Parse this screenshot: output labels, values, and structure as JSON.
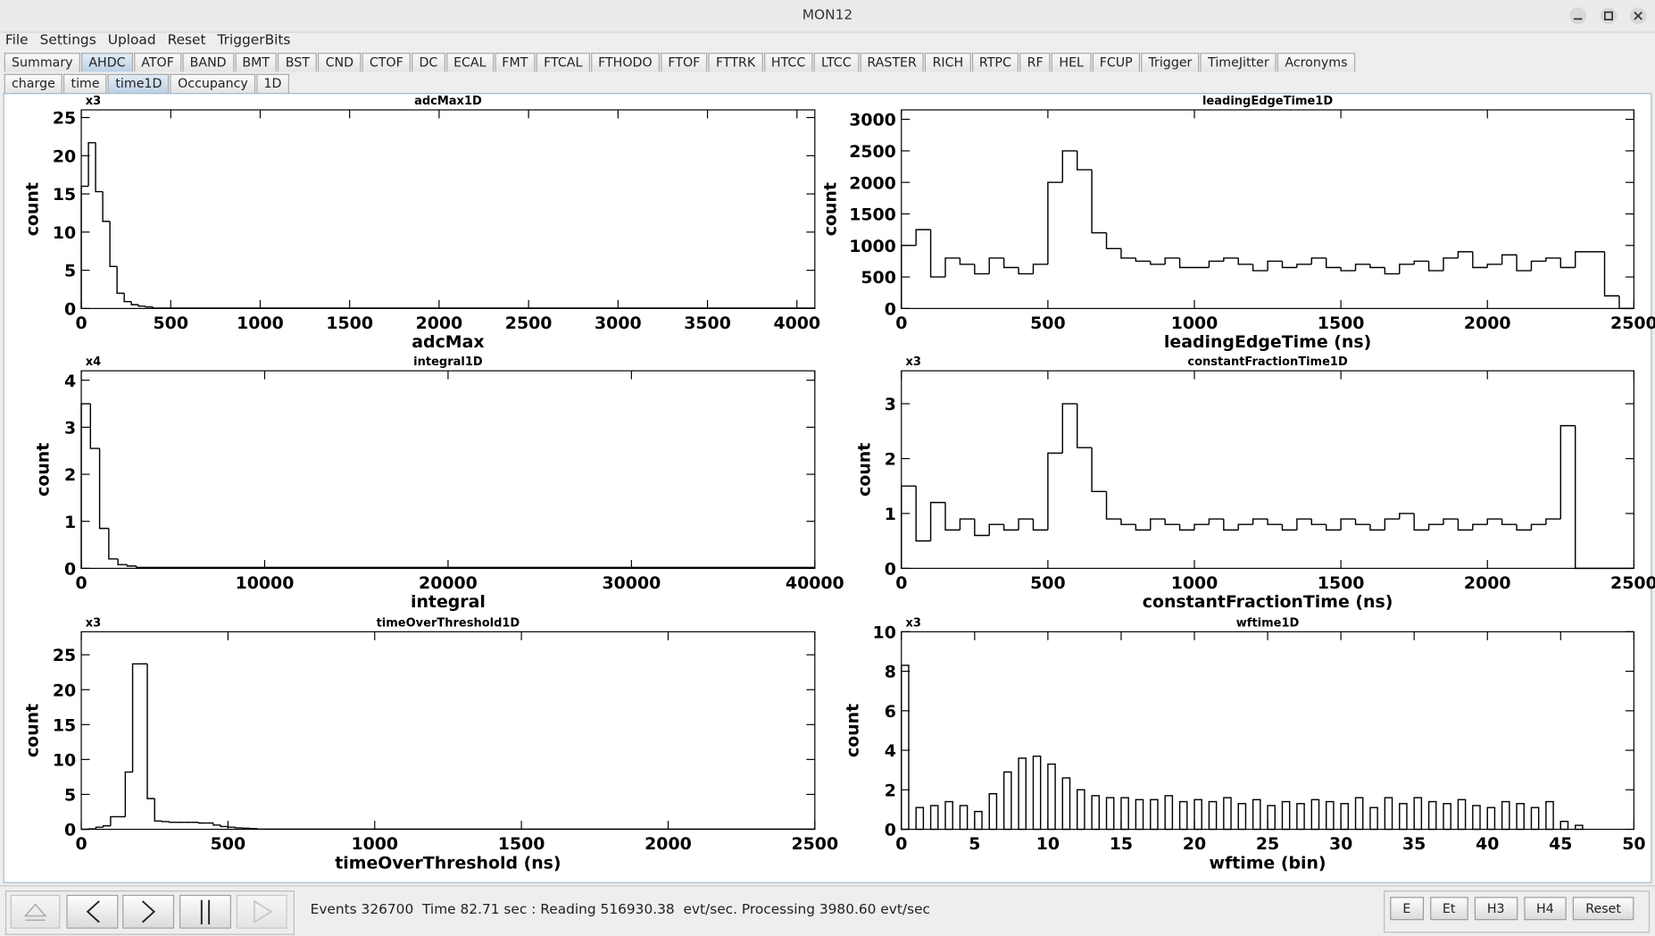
{
  "window": {
    "title": "MON12"
  },
  "menu": [
    "File",
    "Settings",
    "Upload",
    "Reset",
    "TriggerBits"
  ],
  "tabs": {
    "items": [
      "Summary",
      "AHDC",
      "ATOF",
      "BAND",
      "BMT",
      "BST",
      "CND",
      "CTOF",
      "DC",
      "ECAL",
      "FMT",
      "FTCAL",
      "FTHODO",
      "FTOF",
      "FTTRK",
      "HTCC",
      "LTCC",
      "RASTER",
      "RICH",
      "RTPC",
      "RF",
      "HEL",
      "FCUP",
      "Trigger",
      "TimeJitter",
      "Acronyms"
    ],
    "selected": 1
  },
  "subtabs": {
    "items": [
      "charge",
      "time",
      "time1D",
      "Occupancy",
      "1D"
    ],
    "selected": 2
  },
  "chart_data": [
    {
      "type": "histogram",
      "title": "adcMax1D",
      "multiplier": "x3",
      "x_label": "adcMax",
      "y_label": "count",
      "color": "#000000",
      "bins": [
        0,
        40,
        80,
        120,
        160,
        200,
        240,
        280,
        320,
        360,
        400,
        4100
      ],
      "values": [
        16,
        21.7,
        15.3,
        11.4,
        5.5,
        2,
        0.9,
        0.5,
        0.3,
        0.2,
        0.05
      ],
      "xlim": [
        0,
        4100
      ],
      "ylim": [
        0,
        26
      ],
      "xticks": [
        0,
        500,
        1000,
        1500,
        2000,
        2500,
        3000,
        3500,
        4000
      ],
      "yticks": [
        0,
        5,
        10,
        15,
        20,
        25
      ]
    },
    {
      "type": "histogram",
      "title": "leadingEdgeTime1D",
      "x_label": "leadingEdgeTime (ns)",
      "y_label": "count",
      "color": "#000000",
      "bins": [
        0,
        50,
        100,
        150,
        200,
        250,
        300,
        350,
        400,
        450,
        500,
        550,
        600,
        650,
        700,
        750,
        800,
        850,
        900,
        950,
        1000,
        1050,
        1100,
        1150,
        1200,
        1250,
        1300,
        1350,
        1400,
        1450,
        1500,
        1550,
        1600,
        1650,
        1700,
        1750,
        1800,
        1850,
        1900,
        1950,
        2000,
        2050,
        2100,
        2150,
        2200,
        2250,
        2300,
        2350,
        2400,
        2450,
        2500
      ],
      "values": [
        1000,
        1250,
        500,
        800,
        700,
        550,
        800,
        650,
        550,
        700,
        2000,
        2500,
        2200,
        1200,
        950,
        800,
        750,
        700,
        800,
        650,
        650,
        750,
        800,
        700,
        600,
        750,
        650,
        700,
        800,
        650,
        600,
        700,
        650,
        550,
        700,
        750,
        600,
        800,
        900,
        650,
        700,
        850,
        600,
        750,
        800,
        650,
        900,
        900,
        200,
        0
      ],
      "xlim": [
        0,
        2500
      ],
      "ylim": [
        0,
        3150
      ],
      "xticks": [
        0,
        500,
        1000,
        1500,
        2000,
        2500
      ],
      "yticks": [
        0,
        500,
        1000,
        1500,
        2000,
        2500,
        3000
      ]
    },
    {
      "type": "histogram",
      "title": "integral1D",
      "multiplier": "x4",
      "x_label": "integral",
      "y_label": "count",
      "color": "#000000",
      "bins": [
        0,
        500,
        1000,
        1500,
        2000,
        2500,
        3000,
        40000
      ],
      "values": [
        3.5,
        2.55,
        0.85,
        0.2,
        0.08,
        0.05,
        0.02
      ],
      "xlim": [
        0,
        40000
      ],
      "ylim": [
        0,
        4.2
      ],
      "xticks": [
        0,
        10000,
        20000,
        30000,
        40000
      ],
      "yticks": [
        0,
        1,
        2,
        3,
        4
      ]
    },
    {
      "type": "histogram",
      "title": "constantFractionTime1D",
      "multiplier": "x3",
      "x_label": "constantFractionTime (ns)",
      "y_label": "count",
      "color": "#000000",
      "bins": [
        0,
        50,
        100,
        150,
        200,
        250,
        300,
        350,
        400,
        450,
        500,
        550,
        600,
        650,
        700,
        750,
        800,
        850,
        900,
        950,
        1000,
        1050,
        1100,
        1150,
        1200,
        1250,
        1300,
        1350,
        1400,
        1450,
        1500,
        1550,
        1600,
        1650,
        1700,
        1750,
        1800,
        1850,
        1900,
        1950,
        2000,
        2050,
        2100,
        2150,
        2200,
        2250,
        2300,
        2350,
        2400,
        2450,
        2500
      ],
      "values": [
        1.5,
        0.5,
        1.2,
        0.7,
        0.9,
        0.6,
        0.8,
        0.7,
        0.9,
        0.7,
        2.1,
        3.0,
        2.2,
        1.4,
        0.9,
        0.8,
        0.7,
        0.9,
        0.8,
        0.7,
        0.8,
        0.9,
        0.7,
        0.8,
        0.9,
        0.8,
        0.7,
        0.9,
        0.8,
        0.7,
        0.9,
        0.8,
        0.7,
        0.9,
        1.0,
        0.7,
        0.8,
        0.9,
        0.7,
        0.8,
        0.9,
        0.8,
        0.7,
        0.8,
        0.9,
        2.6,
        0,
        0,
        0,
        0
      ],
      "xlim": [
        0,
        2500
      ],
      "ylim": [
        0,
        3.6
      ],
      "xticks": [
        0,
        500,
        1000,
        1500,
        2000,
        2500
      ],
      "yticks": [
        0,
        1,
        2,
        3
      ]
    },
    {
      "type": "histogram",
      "title": "timeOverThreshold1D",
      "multiplier": "x3",
      "x_label": "timeOverThreshold (ns)",
      "y_label": "count",
      "color": "#000000",
      "bins": [
        0,
        25,
        50,
        75,
        100,
        125,
        150,
        175,
        200,
        225,
        250,
        275,
        300,
        325,
        350,
        375,
        400,
        425,
        450,
        475,
        500,
        525,
        550,
        575,
        600,
        2500
      ],
      "values": [
        0,
        0.05,
        0.3,
        0.5,
        1.8,
        1.8,
        8.2,
        23.7,
        23.7,
        4.4,
        1.2,
        1.1,
        1,
        1,
        1,
        1,
        0.9,
        0.9,
        0.6,
        0.4,
        0.3,
        0.2,
        0.15,
        0.1,
        0.03
      ],
      "xlim": [
        0,
        2500
      ],
      "ylim": [
        0,
        28.3
      ],
      "xticks": [
        0,
        500,
        1000,
        1500,
        2000,
        2500
      ],
      "yticks": [
        0,
        5,
        10,
        15,
        20,
        25
      ]
    },
    {
      "type": "bar",
      "title": "wftime1D",
      "multiplier": "x3",
      "x_label": "wftime (bin)",
      "y_label": "count",
      "color": "#000000",
      "x": [
        0,
        1,
        2,
        3,
        4,
        5,
        6,
        7,
        8,
        9,
        10,
        11,
        12,
        13,
        14,
        15,
        16,
        17,
        18,
        19,
        20,
        21,
        22,
        23,
        24,
        25,
        26,
        27,
        28,
        29,
        30,
        31,
        32,
        33,
        34,
        35,
        36,
        37,
        38,
        39,
        40,
        41,
        42,
        43,
        44,
        45,
        46
      ],
      "values": [
        8.3,
        1.1,
        1.2,
        1.4,
        1.2,
        0.9,
        1.8,
        2.9,
        3.6,
        3.7,
        3.3,
        2.6,
        2.0,
        1.7,
        1.6,
        1.6,
        1.5,
        1.5,
        1.7,
        1.4,
        1.5,
        1.4,
        1.6,
        1.3,
        1.5,
        1.2,
        1.4,
        1.3,
        1.5,
        1.4,
        1.3,
        1.6,
        1.1,
        1.6,
        1.3,
        1.6,
        1.4,
        1.3,
        1.5,
        1.2,
        1.1,
        1.4,
        1.3,
        1.1,
        1.4,
        0.4,
        0.2
      ],
      "xlim": [
        0,
        50
      ],
      "ylim": [
        0,
        10
      ],
      "xticks": [
        0,
        5,
        10,
        15,
        20,
        25,
        30,
        35,
        40,
        45,
        50
      ],
      "yticks": [
        0,
        2,
        4,
        6,
        8,
        10
      ]
    }
  ],
  "status": "Events 326700  Time 82.71 sec : Reading 516930.38  evt/sec. Processing 3980.60 evt/sec",
  "buttons": [
    "E",
    "Et",
    "H3",
    "H4",
    "Reset"
  ]
}
